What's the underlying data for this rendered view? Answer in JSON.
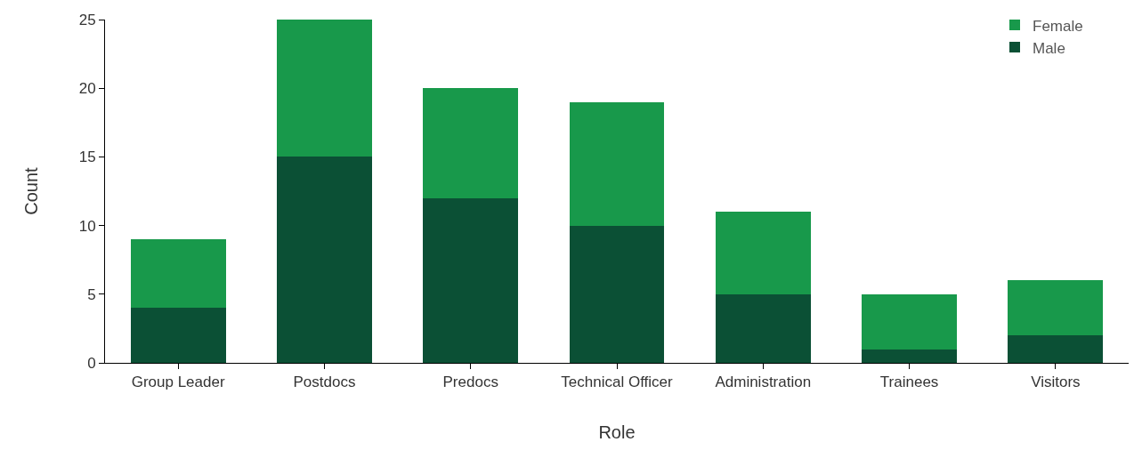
{
  "chart_data": {
    "type": "bar",
    "xlabel": "Role",
    "ylabel": "Count",
    "categories": [
      "Group Leader",
      "Postdocs",
      "Predocs",
      "Technical Officer",
      "Administration",
      "Trainees",
      "Visitors"
    ],
    "series": [
      {
        "name": "Male",
        "color": "#0b5035",
        "values": [
          4,
          15,
          12,
          10,
          5,
          1,
          2
        ]
      },
      {
        "name": "Female",
        "color": "#18994b",
        "values": [
          5,
          10,
          8,
          9,
          6,
          4,
          4
        ]
      }
    ],
    "stacked": true,
    "ylim": [
      0,
      25
    ],
    "yticks": [
      0,
      5,
      10,
      15,
      20,
      25
    ],
    "grid": false,
    "legend": "top right"
  }
}
